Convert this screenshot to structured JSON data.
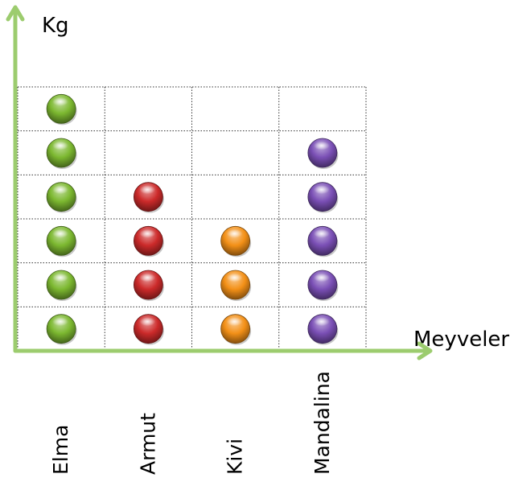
{
  "chart_data": {
    "type": "scatter",
    "title": "",
    "xlabel": "Meyveler",
    "ylabel": "Kg",
    "categories": [
      "Elma",
      "Armut",
      "Kivi",
      "Mandalina"
    ],
    "values": [
      6,
      4,
      3,
      5
    ],
    "colors": [
      "#7cb830",
      "#cc2a2a",
      "#f39017",
      "#7a4fb5"
    ],
    "ylim": [
      0,
      6
    ],
    "grid": true,
    "legend": "none",
    "axis_color": "#9ccc6e",
    "marker": "sphere"
  }
}
